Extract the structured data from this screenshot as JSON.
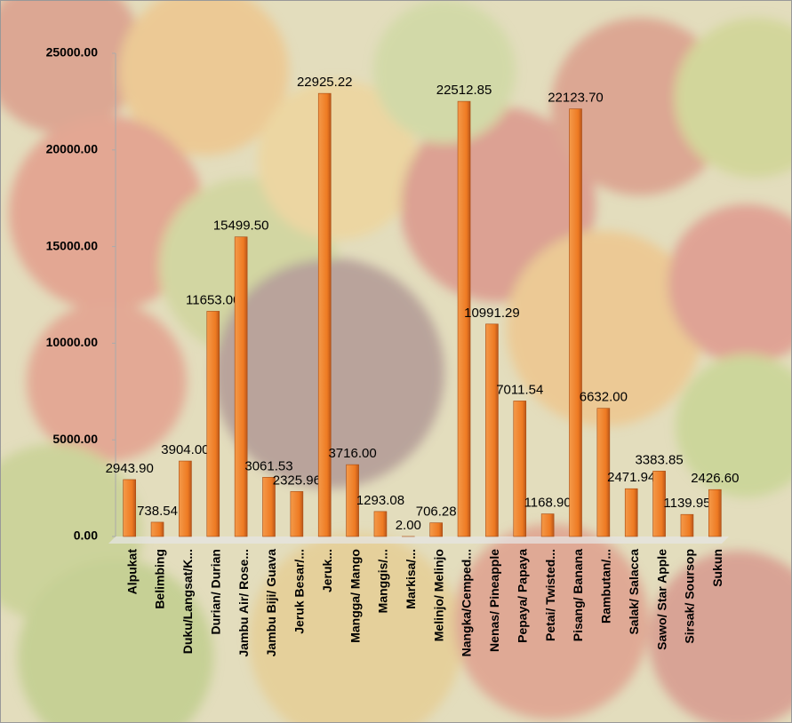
{
  "chart_data": {
    "type": "bar",
    "categories": [
      "Alpukat",
      "Belimbing",
      "Duku/Langsat/K...",
      "Durian/ Durian",
      "Jambu Air/ Rose...",
      "Jambu Biji/ Guava",
      "Jeruk Besar/...",
      "Jeruk...",
      "Mangga/ Mango",
      "Manggis/...",
      "Markisa/...",
      "Melinjo/ Melinjo",
      "Nangka/Cemped...",
      "Nenas/ Pineapple",
      "Pepaya/ Papaya",
      "Petai/ Twisted...",
      "Pisang/ Banana",
      "Rambutan/...",
      "Salak/ Salacca",
      "Sawo/ Star Apple",
      "Sirsak/ Soursop",
      "Sukun"
    ],
    "values": [
      2943.9,
      738.54,
      3904,
      11653,
      15499.5,
      3061.53,
      2325.96,
      22925.22,
      3716,
      1293.08,
      2,
      706.28,
      22512.85,
      10991.29,
      7011.54,
      1168.9,
      22123.7,
      6632,
      2471.94,
      3383.85,
      1139.95,
      2426.6
    ],
    "value_labels": [
      "2943.90",
      "738.54",
      "3904.00",
      "11653.00",
      "15499.50",
      "3061.53",
      "2325.96",
      "22925.22",
      "3716.00",
      "1293.08",
      "2.00",
      "706.28",
      "22512.85",
      "10991.29",
      "7011.54",
      "1168.90",
      "22123.70",
      "6632.00",
      "2471.94",
      "3383.85",
      "1139.95",
      "2426.60"
    ],
    "color": "#ee7a22",
    "ylim": [
      0,
      25000
    ],
    "yticks": [
      {
        "value": 0,
        "label": "0.00"
      },
      {
        "value": 5000,
        "label": "5000.00"
      },
      {
        "value": 10000,
        "label": "10000.00"
      },
      {
        "value": 15000,
        "label": "15000.00"
      },
      {
        "value": 20000,
        "label": "20000.00"
      },
      {
        "value": 25000,
        "label": "25000.00"
      }
    ],
    "grid": false
  }
}
